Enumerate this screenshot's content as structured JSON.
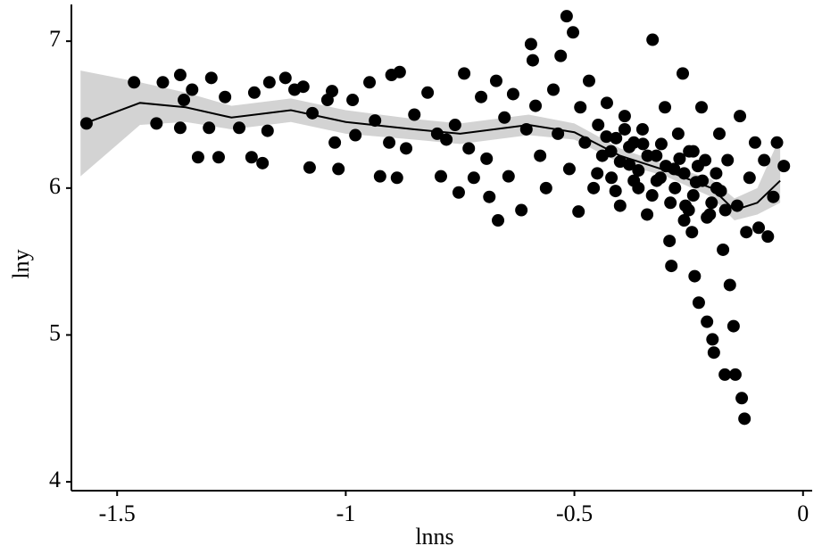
{
  "chart_data": {
    "type": "scatter",
    "x_label": "lnns",
    "y_label": "lny",
    "xlim": [
      -1.6,
      0.02
    ],
    "ylim": [
      3.94,
      7.25
    ],
    "xticks": [
      -1.5,
      -1,
      -0.5,
      0
    ],
    "yticks": [
      4,
      5,
      6,
      7
    ],
    "color": "#000000",
    "x": [
      -1.567,
      -1.463,
      -1.4,
      -1.362,
      -1.336,
      -1.354,
      -1.414,
      -1.362,
      -1.323,
      -1.278,
      -1.294,
      -1.264,
      -1.299,
      -1.233,
      -1.2,
      -1.167,
      -1.171,
      -1.206,
      -1.182,
      -1.132,
      -1.112,
      -1.093,
      -1.079,
      -1.073,
      -1.04,
      -1.03,
      -1.016,
      -1.024,
      -0.985,
      -0.979,
      -0.948,
      -0.936,
      -0.925,
      -0.905,
      -0.9,
      -0.882,
      -0.888,
      -0.868,
      -0.85,
      -0.821,
      -0.8,
      -0.792,
      -0.78,
      -0.761,
      -0.753,
      -0.741,
      -0.731,
      -0.72,
      -0.704,
      -0.692,
      -0.686,
      -0.671,
      -0.667,
      -0.653,
      -0.644,
      -0.634,
      -0.616,
      -0.605,
      -0.595,
      -0.591,
      -0.585,
      -0.575,
      -0.562,
      -0.546,
      -0.536,
      -0.53,
      -0.517,
      -0.503,
      -0.511,
      -0.491,
      -0.487,
      -0.477,
      -0.468,
      -0.458,
      -0.448,
      -0.439,
      -0.429,
      -0.419,
      -0.409,
      -0.4,
      -0.39,
      -0.38,
      -0.37,
      -0.36,
      -0.351,
      -0.341,
      -0.329,
      -0.321,
      -0.312,
      -0.302,
      -0.292,
      -0.288,
      -0.282,
      -0.273,
      -0.263,
      -0.257,
      -0.249,
      -0.243,
      -0.237,
      -0.234,
      -0.228,
      -0.222,
      -0.214,
      -0.21,
      -0.204,
      -0.198,
      -0.195,
      -0.189,
      -0.183,
      -0.175,
      -0.171,
      -0.165,
      -0.16,
      -0.152,
      -0.148,
      -0.144,
      -0.138,
      -0.134,
      -0.128,
      -0.124,
      -0.117,
      -0.105,
      -0.097,
      -0.085,
      -0.077,
      -0.065,
      -0.057,
      -0.042,
      -0.42,
      -0.4,
      -0.38,
      -0.36,
      -0.34,
      -0.32,
      -0.3,
      -0.28,
      -0.26,
      -0.24,
      -0.22,
      -0.2,
      -0.18,
      -0.45,
      -0.43,
      -0.35,
      -0.33,
      -0.31,
      -0.27,
      -0.25,
      -0.23,
      -0.21,
      -0.19,
      -0.17,
      -0.37,
      -0.41,
      -0.39,
      -0.29,
      -0.26,
      -0.24
    ],
    "values": [
      6.44,
      6.72,
      6.72,
      6.77,
      6.67,
      6.6,
      6.44,
      6.41,
      6.21,
      6.21,
      6.75,
      6.62,
      6.41,
      6.41,
      6.65,
      6.72,
      6.39,
      6.21,
      6.17,
      6.75,
      6.67,
      6.69,
      6.14,
      6.51,
      6.6,
      6.66,
      6.13,
      6.31,
      6.6,
      6.36,
      6.72,
      6.46,
      6.08,
      6.31,
      6.77,
      6.79,
      6.07,
      6.27,
      6.5,
      6.65,
      6.37,
      6.08,
      6.33,
      6.43,
      5.97,
      6.78,
      6.27,
      6.07,
      6.62,
      6.2,
      5.94,
      6.73,
      5.78,
      6.48,
      6.08,
      6.64,
      5.85,
      6.4,
      6.98,
      6.87,
      6.56,
      6.22,
      6.0,
      6.67,
      6.37,
      6.9,
      7.17,
      7.06,
      6.13,
      5.84,
      6.55,
      6.31,
      6.73,
      6.0,
      6.43,
      6.22,
      6.58,
      6.07,
      6.34,
      5.88,
      6.49,
      6.16,
      6.31,
      6.0,
      6.4,
      5.82,
      7.01,
      6.22,
      6.07,
      6.55,
      5.64,
      5.47,
      6.13,
      6.37,
      6.78,
      5.88,
      6.25,
      5.7,
      5.4,
      6.04,
      5.22,
      6.55,
      6.19,
      5.09,
      5.82,
      4.97,
      4.88,
      6.0,
      6.37,
      5.58,
      4.73,
      6.19,
      5.34,
      5.06,
      4.73,
      5.88,
      6.49,
      4.57,
      4.43,
      5.7,
      6.07,
      6.31,
      5.73,
      6.19,
      5.67,
      5.94,
      6.31,
      6.15,
      6.25,
      6.18,
      6.28,
      6.12,
      6.22,
      6.05,
      6.15,
      6.0,
      6.1,
      5.95,
      6.05,
      5.9,
      5.98,
      6.1,
      6.35,
      6.3,
      5.95,
      6.3,
      6.2,
      5.85,
      6.15,
      5.8,
      6.1,
      5.85,
      6.05,
      5.98,
      6.4,
      5.9,
      5.78,
      6.25
    ],
    "smooth": {
      "color": "#000000",
      "band_color": "#d3d3d3",
      "x": [
        -1.58,
        -1.45,
        -1.35,
        -1.25,
        -1.12,
        -1.0,
        -0.85,
        -0.75,
        -0.6,
        -0.5,
        -0.4,
        -0.3,
        -0.2,
        -0.15,
        -0.1,
        -0.05
      ],
      "values": [
        6.43,
        6.58,
        6.55,
        6.48,
        6.53,
        6.45,
        6.4,
        6.37,
        6.43,
        6.38,
        6.22,
        6.12,
        6.0,
        5.85,
        5.9,
        6.05
      ],
      "lower": [
        6.08,
        6.43,
        6.45,
        6.4,
        6.45,
        6.37,
        6.33,
        6.3,
        6.36,
        6.33,
        6.17,
        6.08,
        5.94,
        5.78,
        5.82,
        5.9
      ],
      "upper": [
        6.8,
        6.72,
        6.65,
        6.56,
        6.61,
        6.53,
        6.47,
        6.44,
        6.5,
        6.44,
        6.27,
        6.16,
        6.06,
        5.93,
        6.0,
        6.35
      ]
    }
  }
}
